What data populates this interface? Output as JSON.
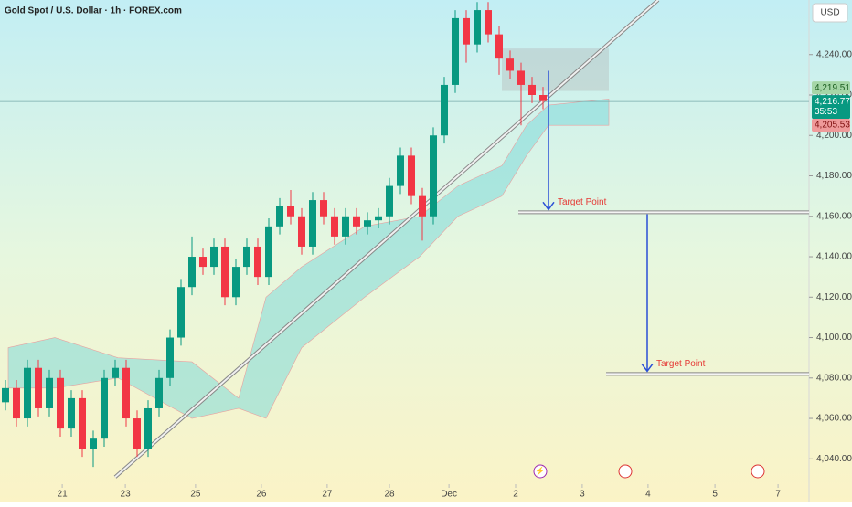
{
  "chart_data": {
    "type": "candlestick",
    "title": "Gold Spot / U.S. Dollar · 1h · FOREX.com",
    "currency": "USD",
    "xlim": [
      0,
      295
    ],
    "ylim": [
      4032,
      4267
    ],
    "xticks": [
      {
        "value": 22.7,
        "label": "21"
      },
      {
        "value": 45.7,
        "label": "23"
      },
      {
        "value": 71.3,
        "label": "25"
      },
      {
        "value": 95.3,
        "label": "26"
      },
      {
        "value": 119.3,
        "label": "27"
      },
      {
        "value": 142,
        "label": "28"
      },
      {
        "value": 163.7,
        "label": "Dec"
      },
      {
        "value": 188,
        "label": "2"
      },
      {
        "value": 212.3,
        "label": "3"
      },
      {
        "value": 236.3,
        "label": "4"
      },
      {
        "value": 260.7,
        "label": "5"
      },
      {
        "value": 283.7,
        "label": "7"
      }
    ],
    "yticks": [
      {
        "value": 4040,
        "label": "4,040.00"
      },
      {
        "value": 4060,
        "label": "4,060.00"
      },
      {
        "value": 4080,
        "label": "4,080.00"
      },
      {
        "value": 4100,
        "label": "4,100.00"
      },
      {
        "value": 4120,
        "label": "4,120.00"
      },
      {
        "value": 4140,
        "label": "4,140.00"
      },
      {
        "value": 4160,
        "label": "4,160.00"
      },
      {
        "value": 4180,
        "label": "4,180.00"
      },
      {
        "value": 4200,
        "label": "4,200.00"
      },
      {
        "value": 4220,
        "label": "4,220.00"
      },
      {
        "value": 4240,
        "label": "4,240.00"
      }
    ],
    "up_color": "#089981",
    "down_color": "#f23645",
    "x": [
      2,
      6,
      10,
      14,
      18,
      22,
      26,
      30,
      34,
      38,
      42,
      46,
      50,
      54,
      58,
      62,
      66,
      70,
      74,
      78,
      82,
      86,
      90,
      94,
      98,
      102,
      106,
      110,
      114,
      118,
      122,
      126,
      130,
      134,
      138,
      142,
      146,
      150,
      154,
      158,
      162,
      166,
      170,
      174,
      178,
      182,
      186,
      190,
      194,
      198
    ],
    "open": [
      4068,
      4075,
      4060,
      4085,
      4065,
      4080,
      4055,
      4070,
      4045,
      4050,
      4080,
      4085,
      4060,
      4045,
      4065,
      4080,
      4100,
      4125,
      4140,
      4135,
      4145,
      4120,
      4135,
      4145,
      4130,
      4155,
      4165,
      4160,
      4145,
      4168,
      4160,
      4150,
      4160,
      4155,
      4158,
      4160,
      4175,
      4190,
      4170,
      4160,
      4200,
      4225,
      4258,
      4245,
      4262,
      4250,
      4238,
      4232,
      4225,
      4220
    ],
    "high": [
      4079,
      4079,
      4089,
      4089,
      4084,
      4084,
      4074,
      4074,
      4054,
      4084,
      4089,
      4089,
      4064,
      4069,
      4084,
      4104,
      4129,
      4150,
      4144,
      4149,
      4149,
      4139,
      4149,
      4149,
      4159,
      4169,
      4173,
      4164,
      4172,
      4172,
      4164,
      4164,
      4164,
      4162,
      4164,
      4179,
      4194,
      4194,
      4174,
      4204,
      4229,
      4262,
      4262,
      4266,
      4266,
      4254,
      4242,
      4236,
      4229,
      4224
    ],
    "low": [
      4064,
      4056,
      4056,
      4061,
      4061,
      4051,
      4051,
      4041,
      4036,
      4046,
      4076,
      4056,
      4041,
      4041,
      4061,
      4076,
      4096,
      4121,
      4131,
      4131,
      4116,
      4116,
      4131,
      4126,
      4126,
      4151,
      4156,
      4141,
      4141,
      4156,
      4146,
      4146,
      4151,
      4151,
      4154,
      4156,
      4171,
      4166,
      4148,
      4156,
      4196,
      4221,
      4236,
      4241,
      4246,
      4230,
      4228,
      4205,
      4216,
      4213
    ],
    "close": [
      4075,
      4060,
      4085,
      4065,
      4080,
      4055,
      4070,
      4045,
      4050,
      4080,
      4085,
      4060,
      4045,
      4065,
      4080,
      4100,
      4125,
      4140,
      4135,
      4145,
      4120,
      4135,
      4145,
      4130,
      4155,
      4165,
      4160,
      4145,
      4168,
      4160,
      4150,
      4160,
      4155,
      4158,
      4160,
      4175,
      4190,
      4170,
      4160,
      4200,
      4225,
      4258,
      4245,
      4262,
      4250,
      4238,
      4232,
      4225,
      4220,
      4217
    ],
    "cloud": {
      "color": "#7fd8d8",
      "x": [
        3,
        20,
        43,
        70,
        87,
        97,
        110,
        133,
        153,
        167,
        183,
        192,
        200,
        222
      ],
      "upper": [
        4095,
        4100,
        4090,
        4088,
        4070,
        4120,
        4135,
        4155,
        4160,
        4175,
        4185,
        4205,
        4215,
        4218
      ],
      "lower": [
        4075,
        4075,
        4080,
        4060,
        4065,
        4060,
        4095,
        4120,
        4140,
        4160,
        4170,
        4190,
        4205,
        4205
      ]
    },
    "trendline": {
      "x": [
        42,
        240
      ],
      "y": [
        4031,
        4267
      ]
    },
    "zone": {
      "x": [
        183,
        222
      ],
      "y": [
        4222,
        4243
      ]
    },
    "last_price": 4216.77,
    "countdown": "35:53",
    "bid": {
      "value": 4219.51,
      "label": "4,219.51"
    },
    "ask": {
      "value": 4205.53,
      "label": "4,205.53"
    },
    "last_label": "4,216.77",
    "targets": [
      {
        "label": "Target Point",
        "value": 4162,
        "x": [
          189,
          295
        ],
        "arrow_x": 200,
        "arrow_from": 4232
      },
      {
        "label": "Target Point",
        "value": 4082,
        "x": [
          221,
          295
        ],
        "arrow_x": 236,
        "arrow_from": 4161
      }
    ]
  }
}
